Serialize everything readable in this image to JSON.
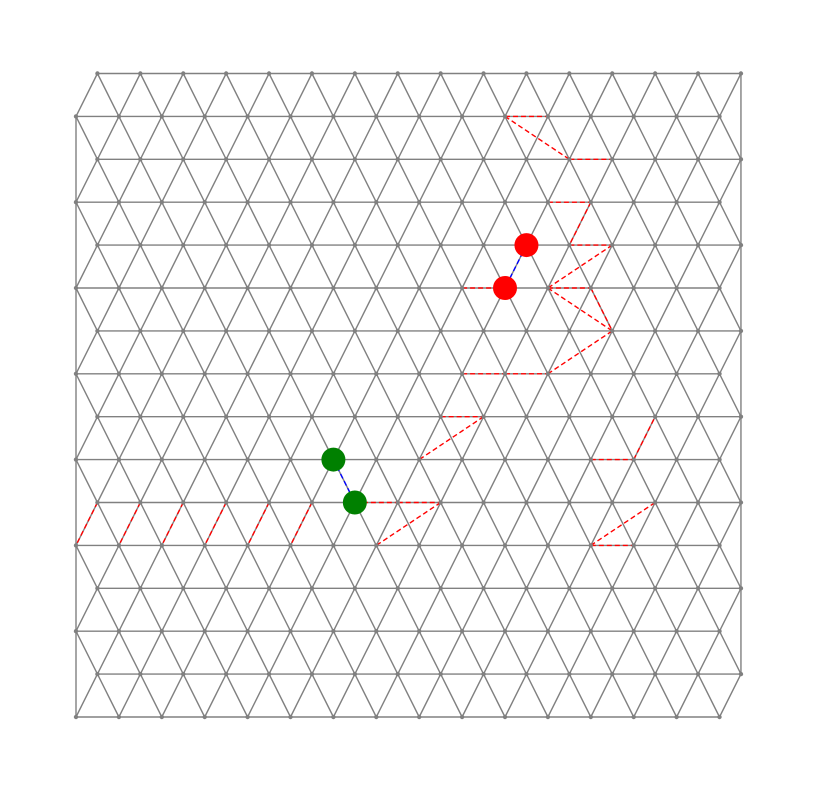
{
  "lattice": {
    "type": "triangular",
    "rows": 16,
    "nodes_per_row": 16,
    "edge_color": "#808080",
    "node_color": "#808080"
  },
  "marker_colors": {
    "red": "#ff0000",
    "green": "#008000"
  },
  "markers": [
    {
      "color": "red",
      "node": [
        4,
        10
      ]
    },
    {
      "color": "red",
      "node": [
        5,
        10
      ]
    },
    {
      "color": "green",
      "node": [
        9,
        6
      ]
    },
    {
      "color": "green",
      "node": [
        10,
        6
      ]
    }
  ],
  "marker_links": [
    {
      "from": [
        4,
        10
      ],
      "to": [
        5,
        10
      ],
      "color": "#0000ff",
      "dashed": true
    },
    {
      "from": [
        9,
        6
      ],
      "to": [
        10,
        6
      ],
      "color": "#0000ff",
      "dashed": true
    }
  ],
  "red_path_color": "#ff0000",
  "red_path": [
    [
      [
        1,
        10
      ],
      [
        1,
        11
      ]
    ],
    [
      [
        1,
        10
      ],
      [
        2,
        11
      ]
    ],
    [
      [
        2,
        11
      ],
      [
        2,
        12
      ]
    ],
    [
      [
        3,
        11
      ],
      [
        3,
        12
      ]
    ],
    [
      [
        3,
        12
      ],
      [
        4,
        11
      ]
    ],
    [
      [
        4,
        11
      ],
      [
        4,
        12
      ]
    ],
    [
      [
        4,
        12
      ],
      [
        5,
        11
      ]
    ],
    [
      [
        5,
        11
      ],
      [
        6,
        12
      ]
    ],
    [
      [
        5,
        11
      ],
      [
        5,
        12
      ]
    ],
    [
      [
        5,
        12
      ],
      [
        6,
        12
      ]
    ],
    [
      [
        5,
        9
      ],
      [
        5,
        10
      ]
    ],
    [
      [
        7,
        9
      ],
      [
        7,
        10
      ]
    ],
    [
      [
        7,
        10
      ],
      [
        7,
        11
      ]
    ],
    [
      [
        7,
        11
      ],
      [
        6,
        12
      ]
    ],
    [
      [
        8,
        8
      ],
      [
        8,
        9
      ]
    ],
    [
      [
        8,
        9
      ],
      [
        9,
        8
      ]
    ],
    [
      [
        9,
        12
      ],
      [
        9,
        13
      ]
    ],
    [
      [
        9,
        13
      ],
      [
        8,
        13
      ]
    ],
    [
      [
        10,
        7
      ],
      [
        10,
        8
      ]
    ],
    [
      [
        10,
        8
      ],
      [
        11,
        7
      ]
    ],
    [
      [
        11,
        12
      ],
      [
        10,
        13
      ]
    ],
    [
      [
        11,
        12
      ],
      [
        11,
        13
      ]
    ],
    [
      [
        10,
        6
      ],
      [
        10,
        7
      ]
    ],
    [
      [
        10,
        0
      ],
      [
        11,
        0
      ]
    ],
    [
      [
        10,
        1
      ],
      [
        11,
        1
      ]
    ],
    [
      [
        10,
        2
      ],
      [
        11,
        2
      ]
    ],
    [
      [
        10,
        3
      ],
      [
        11,
        3
      ]
    ],
    [
      [
        10,
        4
      ],
      [
        11,
        4
      ]
    ],
    [
      [
        10,
        5
      ],
      [
        11,
        5
      ]
    ]
  ]
}
